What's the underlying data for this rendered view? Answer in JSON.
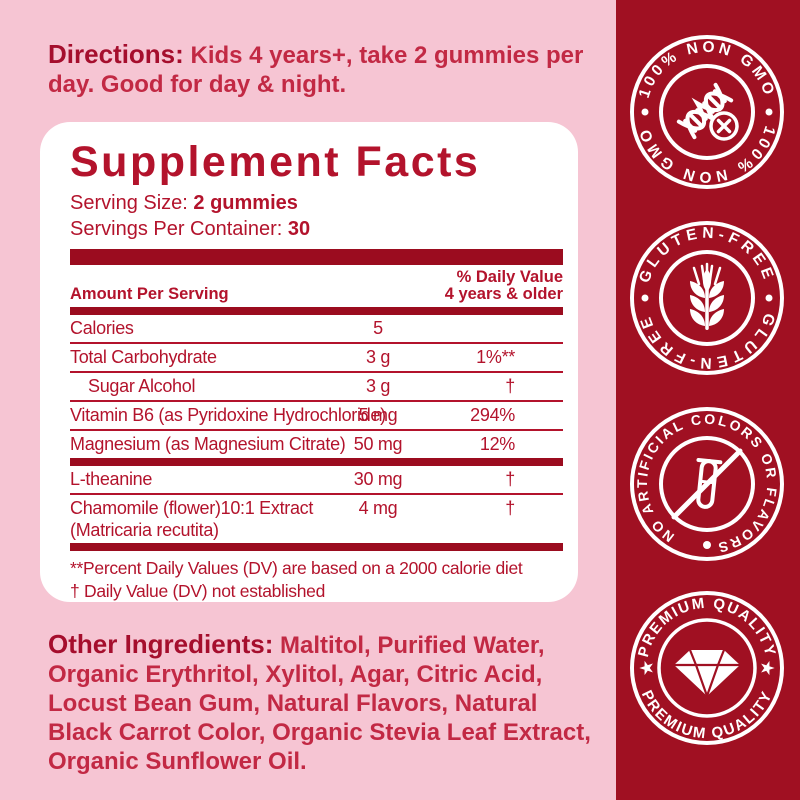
{
  "colors": {
    "background_pink": "#f6c5d3",
    "sidebar_red": "#a01022",
    "panel_white": "#ffffff",
    "label_crimson": "#b3132c",
    "bar_maroon": "#9b0c1f",
    "heading_maroon": "#a50e2d",
    "body_red": "#c22944",
    "badge_white": "#ffffff"
  },
  "directions": {
    "heading": "Directions:",
    "text": "Kids 4 years+, take 2 gummies per day. Good for day & night."
  },
  "supplement_facts": {
    "title": "Supplement Facts",
    "serving_size_label": "Serving Size:",
    "serving_size_value": "2 gummies",
    "servings_label": "Servings Per Container:",
    "servings_value": "30",
    "col_amount": "Amount Per Serving",
    "col_dv_line1": "% Daily Value",
    "col_dv_line2": "4 years & older",
    "rows": [
      {
        "name": "Calories",
        "amount": "5",
        "dv": "",
        "rule": "thin"
      },
      {
        "name": "Total Carbohydrate",
        "amount": "3 g",
        "dv": "1%**",
        "rule": "thin"
      },
      {
        "name": "Sugar Alcohol",
        "indent": true,
        "amount": "3 g",
        "dv": "†",
        "rule": "thin"
      },
      {
        "name": "Vitamin B6 (as Pyridoxine Hydrochloride)",
        "amount": "5 mg",
        "dv": "294%",
        "rule": "thin"
      },
      {
        "name": "Magnesium (as Magnesium Citrate)",
        "amount": "50 mg",
        "dv": "12%",
        "rule": "thick"
      },
      {
        "name": "L-theanine",
        "amount": "30 mg",
        "dv": "†",
        "rule": "thin"
      },
      {
        "name": "Chamomile (flower)10:1 Extract",
        "name2": "(Matricaria recutita)",
        "amount": "4 mg",
        "dv": "†",
        "rule": "thick"
      }
    ],
    "footnotes": [
      "**Percent Daily Values (DV) are based on a 2000 calorie diet",
      "† Daily Value (DV) not established"
    ]
  },
  "other_ingredients": {
    "heading": "Other Ingredients:",
    "text": "Maltitol, Purified Water, Organic Erythritol, Xylitol, Agar, Citric Acid, Locust Bean Gum, Natural Flavors, Natural Black Carrot Color, Organic Stevia Leaf Extract, Organic Sunflower Oil."
  },
  "badges": [
    {
      "label": "100% NON GMO",
      "icon": "non-gmo-dna-icon"
    },
    {
      "label": "GLUTEN-FREE",
      "icon": "gluten-free-wheat-icon"
    },
    {
      "label": "NO ARTIFICIAL COLORS OR FLAVORS",
      "icon": "no-artificial-test-tube-icon"
    },
    {
      "label": "PREMIUM QUALITY",
      "icon": "premium-diamond-icon",
      "star": "★"
    }
  ]
}
